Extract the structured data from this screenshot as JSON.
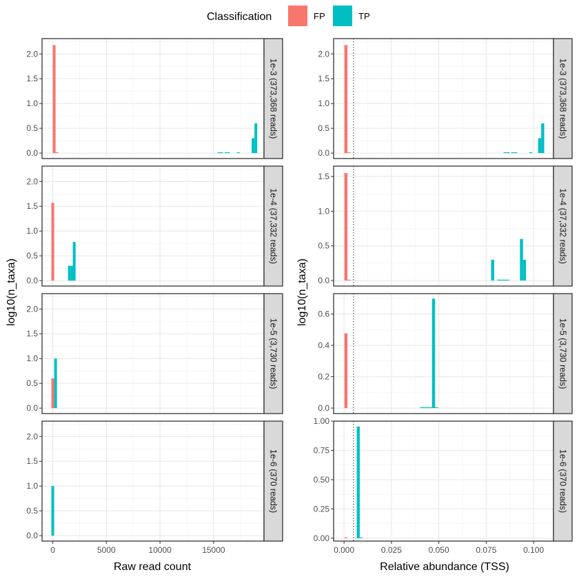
{
  "legend": {
    "title": "Classification",
    "items": [
      {
        "label": "FP",
        "color": "#F8766D"
      },
      {
        "label": "TP",
        "color": "#00BFC4"
      }
    ]
  },
  "chart_data": [
    {
      "type": "bar",
      "xlabel": "Raw read count",
      "ylabel": "log10(n_taxa)",
      "xlim": [
        -1000,
        19700
      ],
      "xticks": [
        0,
        5000,
        10000,
        15000
      ],
      "xtick_labels": [
        "0",
        "5000",
        "10000",
        "15000"
      ],
      "bin_width": 260,
      "shared_y": true,
      "vline": null,
      "facets": [
        {
          "strip": "1e-3 (373,368 reads)",
          "ylim": [
            -0.11,
            2.31
          ],
          "yticks": [
            0,
            0.5,
            1,
            1.5,
            2
          ],
          "ytick_labels": [
            "0.0",
            "0.5",
            "1.0",
            "1.5",
            "2.0"
          ],
          "series": [
            {
              "name": "FP",
              "points": [
                [
                  130,
                  2.18
                ],
                [
                  390,
                  0.0
                ]
              ]
            },
            {
              "name": "TP",
              "points": [
                [
                  15500,
                  0.0
                ],
                [
                  15760,
                  0.0
                ],
                [
                  16150,
                  0.0
                ],
                [
                  16400,
                  0.0
                ],
                [
                  17300,
                  0.0
                ],
                [
                  18680,
                  0.3
                ],
                [
                  18940,
                  0.6
                ]
              ]
            }
          ]
        },
        {
          "strip": "1e-4 (37,332 reads)",
          "ylim": [
            -0.11,
            2.31
          ],
          "yticks": [
            0,
            0.5,
            1,
            1.5,
            2
          ],
          "ytick_labels": [
            "0.0",
            "0.5",
            "1.0",
            "1.5",
            "2.0"
          ],
          "series": [
            {
              "name": "FP",
              "points": [
                [
                  0,
                  1.57
                ]
              ]
            },
            {
              "name": "TP",
              "points": [
                [
                  1550,
                  0.3
                ],
                [
                  1810,
                  0.3
                ],
                [
                  2000,
                  0.78
                ]
              ]
            }
          ]
        },
        {
          "strip": "1e-5 (3,730 reads)",
          "ylim": [
            -0.11,
            2.31
          ],
          "yticks": [
            0,
            0.5,
            1,
            1.5,
            2
          ],
          "ytick_labels": [
            "0.0",
            "0.5",
            "1.0",
            "1.5",
            "2.0"
          ],
          "series": [
            {
              "name": "FP",
              "points": [
                [
                  0,
                  0.6
                ]
              ]
            },
            {
              "name": "TP",
              "points": [
                [
                  260,
                  1.0
                ]
              ]
            }
          ]
        },
        {
          "strip": "1e-6 (370 reads)",
          "ylim": [
            -0.11,
            2.31
          ],
          "yticks": [
            0,
            0.5,
            1,
            1.5,
            2
          ],
          "ytick_labels": [
            "0.0",
            "0.5",
            "1.0",
            "1.5",
            "2.0"
          ],
          "series": [
            {
              "name": "FP",
              "points": []
            },
            {
              "name": "TP",
              "points": [
                [
                  0,
                  1.0
                ]
              ]
            }
          ]
        }
      ]
    },
    {
      "type": "bar",
      "xlabel": "Relative abundance (TSS)",
      "ylabel": "log10(n_taxa)",
      "xlim": [
        -0.0055,
        0.1105
      ],
      "xticks": [
        0,
        0.025,
        0.05,
        0.075,
        0.1
      ],
      "xtick_labels": [
        "0.000",
        "0.025",
        "0.050",
        "0.075",
        "0.100"
      ],
      "bin_width": 0.0016,
      "shared_y": false,
      "vline": 0.005,
      "facets": [
        {
          "strip": "1e-3 (373,368 reads)",
          "ylim": [
            -0.11,
            2.31
          ],
          "yticks": [
            0,
            0.5,
            1,
            1.5,
            2
          ],
          "ytick_labels": [
            "0.0",
            "0.5",
            "1.0",
            "1.5",
            "2.0"
          ],
          "series": [
            {
              "name": "FP",
              "points": [
                [
                  0.001,
                  2.18
                ],
                [
                  0.0026,
                  0.0
                ]
              ]
            },
            {
              "name": "TP",
              "points": [
                [
                  0.085,
                  0.0
                ],
                [
                  0.0866,
                  0.0
                ],
                [
                  0.089,
                  0.0
                ],
                [
                  0.0906,
                  0.0
                ],
                [
                  0.0985,
                  0.0
                ],
                [
                  0.1032,
                  0.3
                ],
                [
                  0.1048,
                  0.6
                ]
              ]
            }
          ]
        },
        {
          "strip": "1e-4 (37,332 reads)",
          "ylim": [
            -0.08,
            1.65
          ],
          "yticks": [
            0,
            0.5,
            1,
            1.5
          ],
          "ytick_labels": [
            "0.0",
            "0.5",
            "1.0",
            "1.5"
          ],
          "series": [
            {
              "name": "FP",
              "points": [
                [
                  0.001,
                  1.55
                ],
                [
                  0.0026,
                  0.0
                ]
              ]
            },
            {
              "name": "TP",
              "points": [
                [
                  0.0784,
                  0.3
                ],
                [
                  0.0816,
                  0.0
                ],
                [
                  0.0832,
                  0.0
                ],
                [
                  0.0848,
                  0.0
                ],
                [
                  0.0864,
                  0.0
                ],
                [
                  0.0936,
                  0.6
                ],
                [
                  0.0952,
                  0.3
                ]
              ]
            }
          ]
        },
        {
          "strip": "1e-5 (3,730 reads)",
          "ylim": [
            -0.035,
            0.73
          ],
          "yticks": [
            0,
            0.2,
            0.4,
            0.6
          ],
          "ytick_labels": [
            "0.0",
            "0.2",
            "0.4",
            "0.6"
          ],
          "series": [
            {
              "name": "FP",
              "points": [
                [
                  0.001,
                  0.477
                ]
              ]
            },
            {
              "name": "TP",
              "points": [
                [
                  0.0408,
                  0.0
                ],
                [
                  0.0424,
                  0.0
                ],
                [
                  0.044,
                  0.0
                ],
                [
                  0.0456,
                  0.0
                ],
                [
                  0.0472,
                  0.698
                ],
                [
                  0.0488,
                  0.0
                ]
              ]
            }
          ]
        },
        {
          "strip": "1e-6 (370 reads)",
          "ylim": [
            -0.025,
            1.0
          ],
          "yticks": [
            0,
            0.25,
            0.5,
            0.75,
            1
          ],
          "ytick_labels": [
            "0.00",
            "0.25",
            "0.50",
            "0.75",
            "1.00"
          ],
          "series": [
            {
              "name": "FP",
              "points": [
                [
                  0.001,
                  0.0
                ]
              ]
            },
            {
              "name": "TP",
              "points": [
                [
                  0.0075,
                  0.954
                ],
                [
                  0.0091,
                  0.0
                ]
              ]
            }
          ]
        }
      ]
    }
  ]
}
